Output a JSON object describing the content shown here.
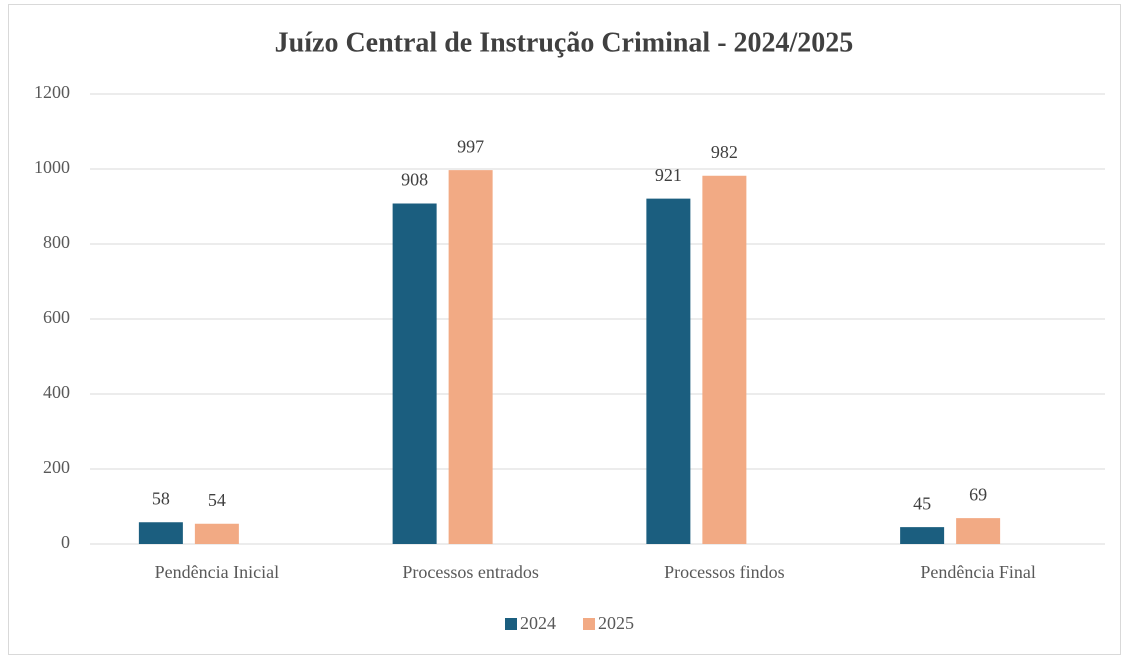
{
  "chart_data": {
    "type": "bar",
    "title": "Juízo Central de Instrução Criminal - 2024/2025",
    "categories": [
      "Pendência Inicial",
      "Processos entrados",
      "Processos findos",
      "Pendência Final"
    ],
    "series": [
      {
        "name": "2024",
        "color": "#1b5e7f",
        "values": [
          58,
          908,
          921,
          45
        ]
      },
      {
        "name": "2025",
        "color": "#f2aa84",
        "values": [
          54,
          997,
          982,
          69
        ]
      }
    ],
    "ylim": [
      0,
      1200
    ],
    "yticks": [
      0,
      200,
      400,
      600,
      800,
      1000,
      1200
    ],
    "grid": true,
    "legend": "bottom"
  }
}
